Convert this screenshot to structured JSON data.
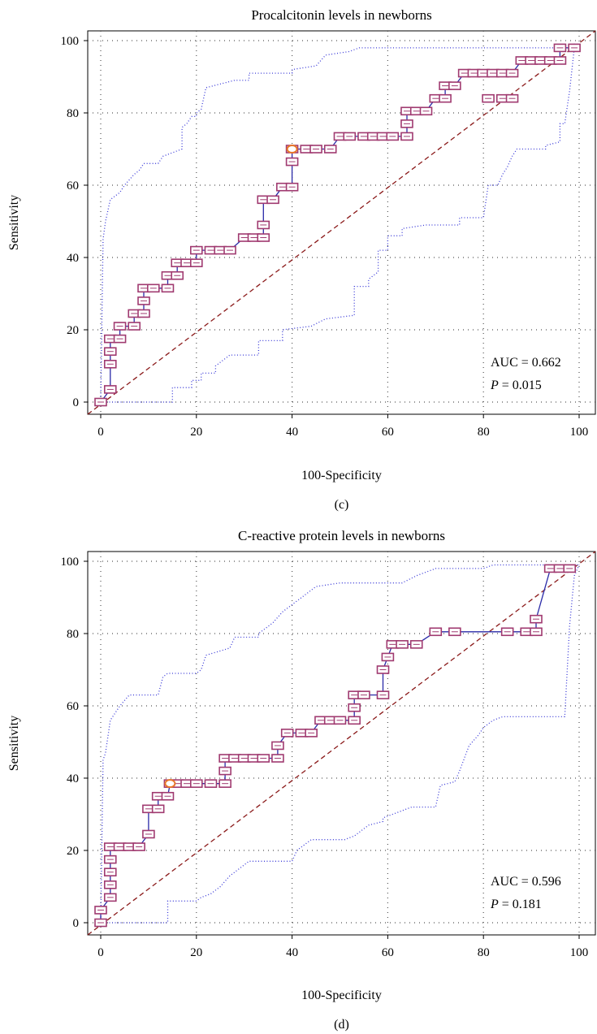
{
  "chart_data": [
    {
      "type": "line",
      "title": "Procalcitonin levels in newborns",
      "xlabel": "100-Specificity",
      "ylabel": "Sensitivity",
      "caption": "(c)",
      "xlim": [
        0,
        100
      ],
      "ylim": [
        0,
        100
      ],
      "xticks": [
        "0",
        "20",
        "40",
        "60",
        "80",
        "100"
      ],
      "yticks": [
        "0",
        "20",
        "40",
        "60",
        "80",
        "100"
      ],
      "grid": true,
      "annotation": {
        "auc_text": "AUC = 0.662",
        "p_label": "P",
        "p_text": " = 0.015"
      },
      "roc": [
        [
          0,
          0
        ],
        [
          2,
          3.5
        ],
        [
          2,
          10.5
        ],
        [
          2,
          14
        ],
        [
          2,
          17.5
        ],
        [
          4,
          17.5
        ],
        [
          4,
          21
        ],
        [
          7,
          21
        ],
        [
          7,
          24.5
        ],
        [
          9,
          24.5
        ],
        [
          9,
          28
        ],
        [
          9,
          31.5
        ],
        [
          11,
          31.5
        ],
        [
          14,
          31.5
        ],
        [
          14,
          35
        ],
        [
          16,
          35
        ],
        [
          16,
          38.5
        ],
        [
          18,
          38.5
        ],
        [
          20,
          38.5
        ],
        [
          20,
          42
        ],
        [
          23,
          42
        ],
        [
          25,
          42
        ],
        [
          27,
          42
        ],
        [
          30,
          45.5
        ],
        [
          32,
          45.5
        ],
        [
          34,
          45.5
        ],
        [
          34,
          49
        ],
        [
          34,
          56
        ],
        [
          36,
          56
        ],
        [
          38,
          59.5
        ],
        [
          40,
          59.5
        ],
        [
          40,
          66.5
        ],
        [
          40,
          70
        ],
        [
          43,
          70
        ],
        [
          45,
          70
        ],
        [
          48,
          70
        ],
        [
          50,
          73.5
        ],
        [
          52,
          73.5
        ],
        [
          55,
          73.5
        ],
        [
          57,
          73.5
        ],
        [
          59,
          73.5
        ],
        [
          61,
          73.5
        ],
        [
          64,
          73.5
        ],
        [
          64,
          77
        ],
        [
          64,
          80.5
        ],
        [
          66,
          80.5
        ],
        [
          68,
          80.5
        ],
        [
          70,
          84
        ],
        [
          72,
          84
        ],
        [
          72,
          87.5
        ],
        [
          74,
          87.5
        ],
        [
          76,
          91
        ],
        [
          78,
          91
        ],
        [
          80,
          91
        ],
        [
          82,
          91
        ],
        [
          84,
          91
        ],
        [
          86,
          91
        ],
        [
          88,
          94.5
        ],
        [
          90,
          94.5
        ],
        [
          92,
          94.5
        ],
        [
          94,
          94.5
        ],
        [
          96,
          94.5
        ],
        [
          96,
          98
        ],
        [
          99,
          98
        ]
      ],
      "extra_points": [
        [
          81,
          84
        ],
        [
          84,
          84
        ],
        [
          86,
          84
        ]
      ],
      "criterion_point": [
        40,
        70
      ],
      "ci_upper": [
        [
          0,
          0
        ],
        [
          0.5,
          45
        ],
        [
          1,
          50
        ],
        [
          2,
          56
        ],
        [
          4,
          58
        ],
        [
          5,
          60
        ],
        [
          7,
          63
        ],
        [
          8,
          64
        ],
        [
          9,
          66
        ],
        [
          12,
          66
        ],
        [
          13,
          68
        ],
        [
          15,
          69
        ],
        [
          17,
          70
        ],
        [
          17,
          76
        ],
        [
          18,
          77
        ],
        [
          19,
          79
        ],
        [
          20,
          79
        ],
        [
          20,
          80
        ],
        [
          21,
          81
        ],
        [
          22,
          87
        ],
        [
          28,
          89
        ],
        [
          31,
          89
        ],
        [
          31,
          91
        ],
        [
          40,
          91
        ],
        [
          40,
          92
        ],
        [
          45,
          93
        ],
        [
          47,
          96
        ],
        [
          52,
          97
        ],
        [
          54,
          98
        ],
        [
          99,
          98
        ],
        [
          99,
          99
        ],
        [
          100,
          99
        ]
      ],
      "ci_lower": [
        [
          0,
          0
        ],
        [
          15,
          0
        ],
        [
          15,
          4
        ],
        [
          19,
          4
        ],
        [
          19,
          6
        ],
        [
          21,
          6
        ],
        [
          21,
          8
        ],
        [
          24,
          8
        ],
        [
          24,
          10
        ],
        [
          27,
          13
        ],
        [
          33,
          13
        ],
        [
          33,
          17
        ],
        [
          38,
          17
        ],
        [
          38,
          20
        ],
        [
          44,
          21
        ],
        [
          47,
          23
        ],
        [
          53,
          24
        ],
        [
          53,
          32
        ],
        [
          56,
          32
        ],
        [
          56,
          34
        ],
        [
          58,
          36
        ],
        [
          58,
          42
        ],
        [
          60,
          42
        ],
        [
          60,
          46
        ],
        [
          63,
          46
        ],
        [
          63,
          48
        ],
        [
          68,
          49
        ],
        [
          75,
          49
        ],
        [
          75,
          51
        ],
        [
          80,
          51
        ],
        [
          81,
          60
        ],
        [
          83,
          60
        ],
        [
          84,
          63
        ],
        [
          85,
          65
        ],
        [
          86,
          68
        ],
        [
          87,
          70
        ],
        [
          93,
          70
        ],
        [
          93,
          71
        ],
        [
          96,
          72
        ],
        [
          96,
          77
        ],
        [
          97,
          77
        ],
        [
          98,
          86
        ],
        [
          99,
          98
        ],
        [
          100,
          99
        ]
      ]
    },
    {
      "type": "line",
      "title": "C-reactive protein levels in newborns",
      "xlabel": "100-Specificity",
      "ylabel": "Sensitivity",
      "caption": "(d)",
      "xlim": [
        0,
        100
      ],
      "ylim": [
        0,
        100
      ],
      "xticks": [
        "0",
        "20",
        "40",
        "60",
        "80",
        "100"
      ],
      "yticks": [
        "0",
        "20",
        "40",
        "60",
        "80",
        "100"
      ],
      "grid": true,
      "annotation": {
        "auc_text": "AUC = 0.596",
        "p_label": "P",
        "p_text": " = 0.181"
      },
      "roc": [
        [
          0,
          0
        ],
        [
          0,
          3.5
        ],
        [
          2,
          7
        ],
        [
          2,
          10.5
        ],
        [
          2,
          14
        ],
        [
          2,
          17.5
        ],
        [
          2,
          21
        ],
        [
          4,
          21
        ],
        [
          6,
          21
        ],
        [
          8,
          21
        ],
        [
          10,
          24.5
        ],
        [
          10,
          31.5
        ],
        [
          12,
          31.5
        ],
        [
          12,
          35
        ],
        [
          14,
          35
        ],
        [
          14.5,
          38.5
        ],
        [
          16,
          38.5
        ],
        [
          18,
          38.5
        ],
        [
          20,
          38.5
        ],
        [
          23,
          38.5
        ],
        [
          26,
          38.5
        ],
        [
          26,
          42
        ],
        [
          26,
          45.5
        ],
        [
          28,
          45.5
        ],
        [
          30,
          45.5
        ],
        [
          32,
          45.5
        ],
        [
          34,
          45.5
        ],
        [
          37,
          45.5
        ],
        [
          37,
          49
        ],
        [
          39,
          52.5
        ],
        [
          42,
          52.5
        ],
        [
          44,
          52.5
        ],
        [
          46,
          56
        ],
        [
          48,
          56
        ],
        [
          50,
          56
        ],
        [
          53,
          56
        ],
        [
          53,
          59.5
        ],
        [
          53,
          63
        ],
        [
          55,
          63
        ],
        [
          59,
          63
        ],
        [
          59,
          70
        ],
        [
          60,
          73.5
        ],
        [
          61,
          77
        ],
        [
          63,
          77
        ],
        [
          66,
          77
        ],
        [
          70,
          80.5
        ],
        [
          74,
          80.5
        ],
        [
          85,
          80.5
        ],
        [
          89,
          80.5
        ],
        [
          91,
          80.5
        ],
        [
          91,
          84
        ],
        [
          94,
          98
        ],
        [
          96,
          98
        ],
        [
          98,
          98
        ]
      ],
      "criterion_point": [
        14.5,
        38.5
      ],
      "ci_upper": [
        [
          0,
          0
        ],
        [
          0.5,
          45
        ],
        [
          1,
          47
        ],
        [
          2,
          56
        ],
        [
          3,
          58
        ],
        [
          4,
          60
        ],
        [
          6,
          63
        ],
        [
          12,
          63
        ],
        [
          13,
          68
        ],
        [
          14,
          69
        ],
        [
          20,
          69
        ],
        [
          21,
          70
        ],
        [
          22,
          74
        ],
        [
          27,
          76
        ],
        [
          28,
          79
        ],
        [
          33,
          79
        ],
        [
          33,
          80
        ],
        [
          36,
          83
        ],
        [
          38,
          86
        ],
        [
          42,
          90
        ],
        [
          45,
          93
        ],
        [
          50,
          94
        ],
        [
          63,
          94
        ],
        [
          66,
          96
        ],
        [
          70,
          98
        ],
        [
          80,
          98
        ],
        [
          82,
          99
        ],
        [
          100,
          99
        ]
      ],
      "ci_lower": [
        [
          0,
          0
        ],
        [
          14,
          0
        ],
        [
          14,
          6
        ],
        [
          20,
          6
        ],
        [
          21,
          7
        ],
        [
          23,
          8
        ],
        [
          25,
          10
        ],
        [
          27,
          13
        ],
        [
          29,
          15
        ],
        [
          31,
          17
        ],
        [
          40,
          17
        ],
        [
          41,
          20
        ],
        [
          44,
          23
        ],
        [
          51,
          23
        ],
        [
          53,
          24
        ],
        [
          56,
          27
        ],
        [
          59,
          28
        ],
        [
          59,
          29
        ],
        [
          61,
          30
        ],
        [
          65,
          32
        ],
        [
          70,
          32
        ],
        [
          71,
          38
        ],
        [
          74,
          39
        ],
        [
          75,
          42
        ],
        [
          77,
          49
        ],
        [
          79,
          52
        ],
        [
          80,
          54
        ],
        [
          82,
          56
        ],
        [
          84,
          57
        ],
        [
          97,
          57
        ],
        [
          98,
          82
        ],
        [
          99,
          96
        ],
        [
          100,
          99
        ]
      ]
    }
  ]
}
